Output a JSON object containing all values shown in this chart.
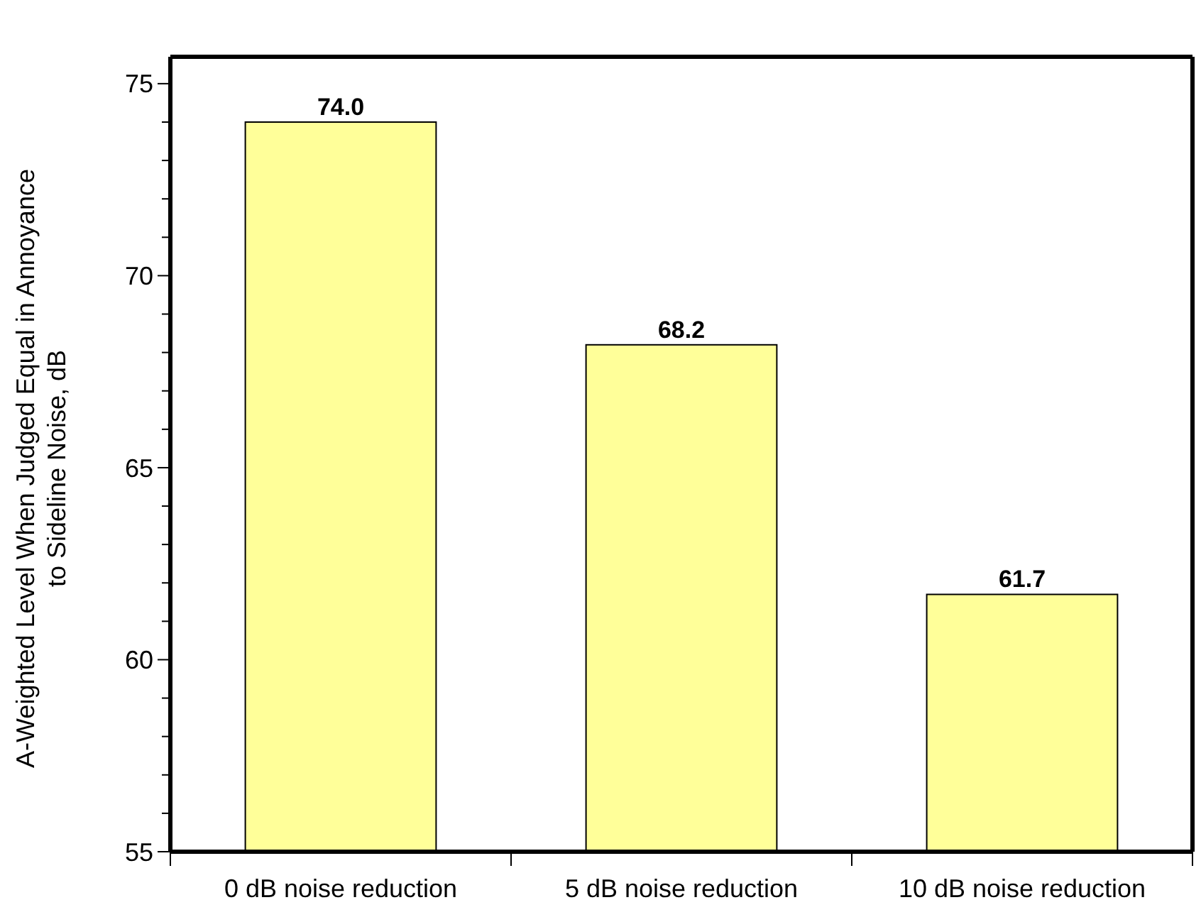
{
  "chart_data": {
    "type": "bar",
    "ylabel": "A-Weighted Level When Judged Equal in Annoyance\nto Sideline Noise, dB",
    "categories": [
      "0 dB noise reduction",
      "5 dB noise reduction",
      "10 dB noise reduction"
    ],
    "values": [
      74.0,
      68.2,
      61.7
    ],
    "value_labels": [
      "74.0",
      "68.2",
      "61.7"
    ],
    "color": "#ffff99",
    "grid": false,
    "ylim": [
      55,
      75.7
    ],
    "yticks": [
      55,
      {
        "value": 56,
        "label": null
      },
      {
        "value": 57,
        "label": null
      },
      {
        "value": 58,
        "label": null
      },
      {
        "value": 59,
        "label": null
      },
      60,
      {
        "value": 61,
        "label": null
      },
      {
        "value": 62,
        "label": null
      },
      {
        "value": 63,
        "label": null
      },
      {
        "value": 64,
        "label": null
      },
      65,
      {
        "value": 66,
        "label": null
      },
      {
        "value": 67,
        "label": null
      },
      {
        "value": 68,
        "label": null
      },
      {
        "value": 69,
        "label": null
      },
      70,
      {
        "value": 71,
        "label": null
      },
      {
        "value": 72,
        "label": null
      },
      {
        "value": 73,
        "label": null
      },
      {
        "value": 74,
        "label": null
      },
      75
    ]
  }
}
